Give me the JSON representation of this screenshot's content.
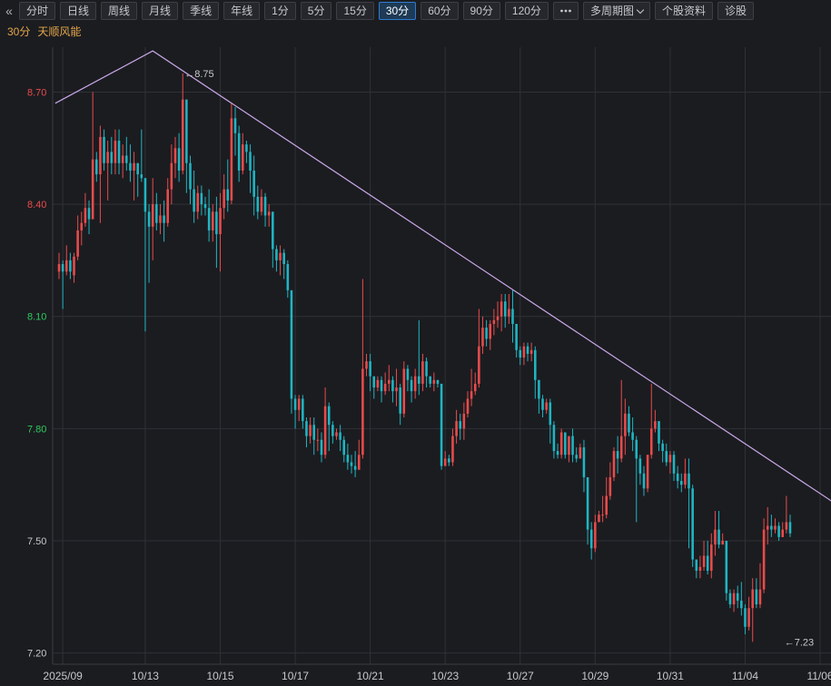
{
  "toolbar": {
    "collapse_icon": "double-chevron-left-icon",
    "buttons": [
      "分时",
      "日线",
      "周线",
      "月线",
      "季线",
      "年线",
      "1分",
      "5分",
      "15分",
      "30分",
      "60分",
      "90分",
      "120分"
    ],
    "active": "30分",
    "more_icon": "more-dots-icon",
    "multi_period": "多周期图",
    "stock_info": "个股资料",
    "diagnose": "诊股"
  },
  "header": {
    "period": "30分",
    "stock_name": "天顺风能"
  },
  "colors": {
    "up": "#e84b4b",
    "down": "#1fb5c2",
    "trendline": "#c9a8e8",
    "grid": "#2f3136",
    "tick_up": "#e84b4b",
    "tick_down": "#2ec95e",
    "text": "#c6c8cc"
  },
  "chart_data": {
    "type": "candlestick",
    "ylim": [
      7.17,
      8.82
    ],
    "yticks": [
      "8.70",
      "8.40",
      "8.10",
      "7.80",
      "7.50",
      "7.20"
    ],
    "xticks": [
      {
        "label": "2025/09",
        "bar": 1
      },
      {
        "label": "10/13",
        "bar": 23
      },
      {
        "label": "10/15",
        "bar": 43
      },
      {
        "label": "10/17",
        "bar": 63
      },
      {
        "label": "10/21",
        "bar": 83
      },
      {
        "label": "10/23",
        "bar": 103
      },
      {
        "label": "10/27",
        "bar": 123
      },
      {
        "label": "10/29",
        "bar": 143
      },
      {
        "label": "10/31",
        "bar": 163
      },
      {
        "label": "11/04",
        "bar": 183
      },
      {
        "label": "11/06",
        "bar": 203
      }
    ],
    "annotations": [
      {
        "text": "8.75",
        "bar": 33,
        "value": 8.75
      },
      {
        "text": "7.23",
        "bar": 193,
        "value": 7.23
      }
    ],
    "trendline": [
      [
        -1,
        8.67
      ],
      [
        25,
        8.81
      ],
      [
        213,
        7.56
      ]
    ],
    "candles": [
      [
        8.22,
        8.24,
        8.27,
        8.2
      ],
      [
        8.24,
        8.22,
        8.25,
        8.12
      ],
      [
        8.22,
        8.25,
        8.29,
        8.21
      ],
      [
        8.25,
        8.22,
        8.27,
        8.2
      ],
      [
        8.21,
        8.26,
        8.27,
        8.19
      ],
      [
        8.26,
        8.33,
        8.37,
        8.25
      ],
      [
        8.33,
        8.35,
        8.38,
        8.29
      ],
      [
        8.35,
        8.39,
        8.43,
        8.34
      ],
      [
        8.39,
        8.36,
        8.41,
        8.32
      ],
      [
        8.36,
        8.52,
        8.7,
        8.36
      ],
      [
        8.52,
        8.48,
        8.54,
        8.46
      ],
      [
        8.48,
        8.58,
        8.61,
        8.35
      ],
      [
        8.58,
        8.51,
        8.6,
        8.49
      ],
      [
        8.51,
        8.54,
        8.57,
        8.41
      ],
      [
        8.54,
        8.51,
        8.58,
        8.48
      ],
      [
        8.51,
        8.57,
        8.6,
        8.48
      ],
      [
        8.57,
        8.51,
        8.6,
        8.48
      ],
      [
        8.51,
        8.53,
        8.56,
        8.47
      ],
      [
        8.53,
        8.51,
        8.58,
        8.49
      ],
      [
        8.51,
        8.49,
        8.56,
        8.46
      ],
      [
        8.49,
        8.51,
        8.54,
        8.41
      ],
      [
        8.51,
        8.48,
        8.51,
        8.42
      ],
      [
        8.48,
        8.47,
        8.6,
        8.46
      ],
      [
        8.47,
        8.38,
        8.47,
        8.06
      ],
      [
        8.38,
        8.34,
        8.4,
        8.19
      ],
      [
        8.34,
        8.4,
        8.47,
        8.25
      ],
      [
        8.4,
        8.35,
        8.43,
        8.33
      ],
      [
        8.35,
        8.37,
        8.4,
        8.32
      ],
      [
        8.37,
        8.35,
        8.41,
        8.3
      ],
      [
        8.35,
        8.44,
        8.47,
        8.34
      ],
      [
        8.44,
        8.51,
        8.56,
        8.4
      ],
      [
        8.51,
        8.55,
        8.58,
        8.47
      ],
      [
        8.55,
        8.49,
        8.59,
        8.46
      ],
      [
        8.49,
        8.68,
        8.75,
        8.48
      ],
      [
        8.68,
        8.51,
        8.68,
        8.43
      ],
      [
        8.51,
        8.44,
        8.53,
        8.4
      ],
      [
        8.44,
        8.38,
        8.49,
        8.35
      ],
      [
        8.38,
        8.43,
        8.45,
        8.36
      ],
      [
        8.43,
        8.4,
        8.45,
        8.37
      ],
      [
        8.4,
        8.39,
        8.42,
        8.37
      ],
      [
        8.39,
        8.33,
        8.44,
        8.3
      ],
      [
        8.33,
        8.38,
        8.4,
        8.3
      ],
      [
        8.38,
        8.32,
        8.42,
        8.23
      ],
      [
        8.32,
        8.39,
        8.43,
        8.22
      ],
      [
        8.39,
        8.44,
        8.48,
        8.36
      ],
      [
        8.44,
        8.41,
        8.52,
        8.38
      ],
      [
        8.41,
        8.63,
        8.67,
        8.4
      ],
      [
        8.63,
        8.59,
        8.66,
        8.53
      ],
      [
        8.59,
        8.49,
        8.61,
        8.46
      ],
      [
        8.49,
        8.56,
        8.59,
        8.48
      ],
      [
        8.56,
        8.54,
        8.57,
        8.51
      ],
      [
        8.54,
        8.49,
        8.56,
        8.43
      ],
      [
        8.49,
        8.42,
        8.53,
        8.37
      ],
      [
        8.42,
        8.38,
        8.45,
        8.36
      ],
      [
        8.38,
        8.42,
        8.44,
        8.37
      ],
      [
        8.42,
        8.37,
        8.43,
        8.34
      ],
      [
        8.37,
        8.38,
        8.4,
        8.34
      ],
      [
        8.38,
        8.28,
        8.38,
        8.23
      ],
      [
        8.28,
        8.25,
        8.29,
        8.22
      ],
      [
        8.25,
        8.27,
        8.29,
        8.21
      ],
      [
        8.27,
        8.24,
        8.28,
        8.2
      ],
      [
        8.24,
        8.17,
        8.25,
        8.15
      ],
      [
        8.17,
        7.88,
        8.17,
        7.84
      ],
      [
        7.88,
        7.85,
        7.89,
        7.8
      ],
      [
        7.85,
        7.88,
        7.89,
        7.82
      ],
      [
        7.88,
        7.82,
        7.89,
        7.8
      ],
      [
        7.82,
        7.78,
        7.83,
        7.75
      ],
      [
        7.78,
        7.81,
        7.83,
        7.76
      ],
      [
        7.81,
        7.77,
        7.83,
        7.73
      ],
      [
        7.77,
        7.77,
        7.8,
        7.74
      ],
      [
        7.77,
        7.73,
        7.79,
        7.71
      ],
      [
        7.73,
        7.86,
        7.91,
        7.72
      ],
      [
        7.86,
        7.81,
        7.87,
        7.74
      ],
      [
        7.81,
        7.78,
        7.82,
        7.76
      ],
      [
        7.78,
        7.79,
        7.8,
        7.77
      ],
      [
        7.79,
        7.77,
        7.81,
        7.74
      ],
      [
        7.77,
        7.73,
        7.78,
        7.71
      ],
      [
        7.73,
        7.71,
        7.76,
        7.69
      ],
      [
        7.71,
        7.7,
        7.73,
        7.68
      ],
      [
        7.7,
        7.69,
        7.74,
        7.67
      ],
      [
        7.69,
        7.73,
        7.77,
        7.69
      ],
      [
        7.73,
        7.96,
        8.2,
        7.72
      ],
      [
        7.96,
        7.98,
        8.0,
        7.94
      ],
      [
        7.98,
        7.94,
        8.0,
        7.9
      ],
      [
        7.94,
        7.91,
        7.93,
        7.88
      ],
      [
        7.91,
        7.93,
        7.94,
        7.9
      ],
      [
        7.93,
        7.9,
        7.94,
        7.87
      ],
      [
        7.9,
        7.92,
        7.95,
        7.89
      ],
      [
        7.92,
        7.93,
        7.97,
        7.9
      ],
      [
        7.93,
        7.9,
        7.94,
        7.87
      ],
      [
        7.9,
        7.91,
        7.96,
        7.86
      ],
      [
        7.91,
        7.84,
        7.92,
        7.81
      ],
      [
        7.84,
        7.96,
        7.98,
        7.83
      ],
      [
        7.96,
        7.93,
        7.97,
        7.9
      ],
      [
        7.93,
        7.9,
        7.94,
        7.87
      ],
      [
        7.9,
        7.94,
        7.96,
        7.88
      ],
      [
        7.94,
        7.92,
        8.09,
        7.89
      ],
      [
        7.92,
        7.98,
        8.0,
        7.9
      ],
      [
        7.98,
        7.94,
        7.99,
        7.91
      ],
      [
        7.94,
        7.92,
        7.94,
        7.91
      ],
      [
        7.92,
        7.93,
        7.95,
        7.9
      ],
      [
        7.93,
        7.92,
        7.93,
        7.91
      ],
      [
        7.92,
        7.7,
        7.92,
        7.69
      ],
      [
        7.7,
        7.72,
        7.74,
        7.7
      ],
      [
        7.72,
        7.71,
        7.73,
        7.7
      ],
      [
        7.71,
        7.78,
        7.8,
        7.7
      ],
      [
        7.78,
        7.82,
        7.85,
        7.76
      ],
      [
        7.82,
        7.8,
        7.84,
        7.77
      ],
      [
        7.8,
        7.84,
        7.87,
        7.77
      ],
      [
        7.84,
        7.88,
        7.9,
        7.83
      ],
      [
        7.88,
        7.9,
        7.96,
        7.86
      ],
      [
        7.9,
        7.92,
        7.95,
        7.89
      ],
      [
        7.92,
        8.02,
        8.12,
        7.91
      ],
      [
        8.02,
        8.07,
        8.1,
        8.0
      ],
      [
        8.07,
        8.04,
        8.09,
        8.02
      ],
      [
        8.04,
        8.08,
        8.09,
        8.01
      ],
      [
        8.08,
        8.09,
        8.12,
        8.05
      ],
      [
        8.09,
        8.1,
        8.14,
        8.07
      ],
      [
        8.1,
        8.14,
        8.16,
        8.06
      ],
      [
        8.14,
        8.1,
        8.16,
        8.07
      ],
      [
        8.1,
        8.12,
        8.16,
        8.08
      ],
      [
        8.12,
        8.08,
        8.17,
        8.03
      ],
      [
        8.08,
        8.01,
        8.08,
        7.99
      ],
      [
        8.01,
        7.99,
        8.02,
        7.97
      ],
      [
        7.99,
        8.02,
        8.03,
        7.97
      ],
      [
        8.02,
        8.0,
        8.03,
        7.98
      ],
      [
        8.0,
        8.01,
        8.03,
        7.98
      ],
      [
        8.01,
        7.93,
        8.02,
        7.88
      ],
      [
        7.93,
        7.88,
        7.93,
        7.84
      ],
      [
        7.88,
        7.85,
        7.89,
        7.83
      ],
      [
        7.85,
        7.87,
        7.88,
        7.84
      ],
      [
        7.87,
        7.81,
        7.88,
        7.76
      ],
      [
        7.81,
        7.74,
        7.82,
        7.72
      ],
      [
        7.74,
        7.73,
        7.76,
        7.72
      ],
      [
        7.73,
        7.79,
        7.8,
        7.72
      ],
      [
        7.79,
        7.73,
        7.79,
        7.72
      ],
      [
        7.73,
        7.78,
        7.78,
        7.71
      ],
      [
        7.78,
        7.73,
        7.8,
        7.71
      ],
      [
        7.73,
        7.72,
        7.75,
        7.71
      ],
      [
        7.72,
        7.75,
        7.76,
        7.72
      ],
      [
        7.75,
        7.67,
        7.77,
        7.63
      ],
      [
        7.67,
        7.53,
        7.67,
        7.49
      ],
      [
        7.53,
        7.48,
        7.55,
        7.45
      ],
      [
        7.48,
        7.55,
        7.57,
        7.47
      ],
      [
        7.55,
        7.57,
        7.58,
        7.55
      ],
      [
        7.57,
        7.57,
        7.62,
        7.55
      ],
      [
        7.57,
        7.62,
        7.67,
        7.56
      ],
      [
        7.62,
        7.67,
        7.71,
        7.61
      ],
      [
        7.67,
        7.74,
        7.75,
        7.66
      ],
      [
        7.74,
        7.72,
        7.78,
        7.68
      ],
      [
        7.72,
        7.78,
        7.93,
        7.71
      ],
      [
        7.78,
        7.84,
        7.88,
        7.73
      ],
      [
        7.84,
        7.79,
        7.86,
        7.78
      ],
      [
        7.79,
        7.77,
        7.83,
        7.74
      ],
      [
        7.77,
        7.72,
        7.78,
        7.55
      ],
      [
        7.72,
        7.68,
        7.73,
        7.65
      ],
      [
        7.68,
        7.64,
        7.7,
        7.62
      ],
      [
        7.64,
        7.73,
        7.73,
        7.63
      ],
      [
        7.73,
        7.8,
        7.92,
        7.72
      ],
      [
        7.8,
        7.82,
        7.85,
        7.79
      ],
      [
        7.82,
        7.76,
        7.82,
        7.74
      ],
      [
        7.76,
        7.74,
        7.77,
        7.71
      ],
      [
        7.74,
        7.71,
        7.76,
        7.7
      ],
      [
        7.71,
        7.73,
        7.74,
        7.68
      ],
      [
        7.73,
        7.68,
        7.74,
        7.66
      ],
      [
        7.68,
        7.66,
        7.7,
        7.64
      ],
      [
        7.66,
        7.65,
        7.68,
        7.63
      ],
      [
        7.65,
        7.68,
        7.72,
        7.64
      ],
      [
        7.68,
        7.64,
        7.72,
        7.48
      ],
      [
        7.64,
        7.45,
        7.65,
        7.43
      ],
      [
        7.45,
        7.42,
        7.45,
        7.4
      ],
      [
        7.42,
        7.43,
        7.46,
        7.4
      ],
      [
        7.43,
        7.46,
        7.5,
        7.42
      ],
      [
        7.46,
        7.42,
        7.5,
        7.41
      ],
      [
        7.42,
        7.49,
        7.52,
        7.4
      ],
      [
        7.49,
        7.53,
        7.58,
        7.46
      ],
      [
        7.53,
        7.49,
        7.58,
        7.48
      ],
      [
        7.49,
        7.5,
        7.52,
        7.49
      ],
      [
        7.5,
        7.36,
        7.5,
        7.34
      ],
      [
        7.36,
        7.33,
        7.37,
        7.32
      ],
      [
        7.33,
        7.36,
        7.37,
        7.31
      ],
      [
        7.36,
        7.34,
        7.38,
        7.32
      ],
      [
        7.34,
        7.32,
        7.39,
        7.3
      ],
      [
        7.32,
        7.27,
        7.33,
        7.25
      ],
      [
        7.27,
        7.32,
        7.35,
        7.26
      ],
      [
        7.32,
        7.37,
        7.4,
        7.23
      ],
      [
        7.37,
        7.33,
        7.4,
        7.32
      ],
      [
        7.33,
        7.37,
        7.44,
        7.32
      ],
      [
        7.37,
        7.53,
        7.56,
        7.36
      ],
      [
        7.53,
        7.54,
        7.59,
        7.49
      ],
      [
        7.54,
        7.53,
        7.57,
        7.51
      ],
      [
        7.53,
        7.54,
        7.56,
        7.52
      ],
      [
        7.54,
        7.51,
        7.55,
        7.5
      ],
      [
        7.51,
        7.53,
        7.55,
        7.51
      ],
      [
        7.53,
        7.55,
        7.62,
        7.52
      ],
      [
        7.55,
        7.52,
        7.57,
        7.51
      ]
    ]
  }
}
